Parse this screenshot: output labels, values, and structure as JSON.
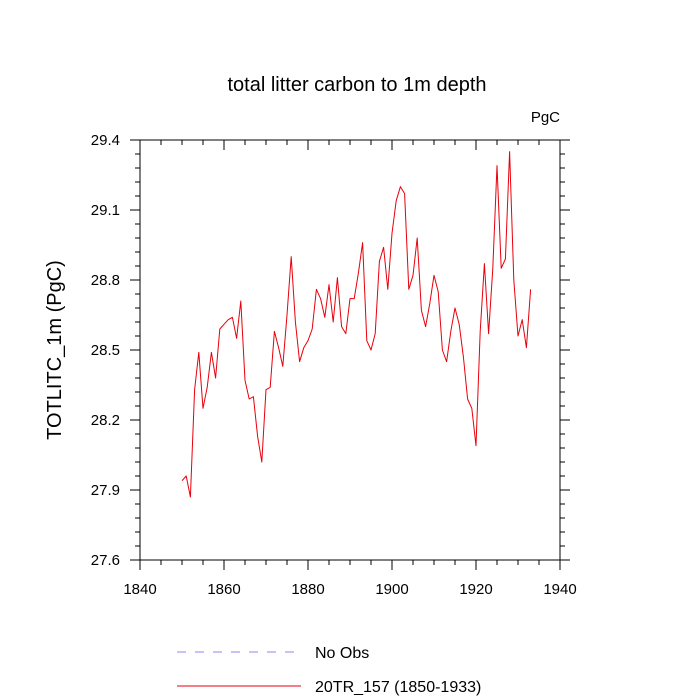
{
  "colors": {
    "series": "#e8000b",
    "no_obs": "#8a8af0",
    "axis": "#000000"
  },
  "chart_data": {
    "type": "line",
    "title": "total litter carbon to 1m depth",
    "units_label": "PgC",
    "xlabel": "",
    "ylabel": "TOTLITC_1m  (PgC)",
    "xlim": [
      1840,
      1940
    ],
    "ylim": [
      27.6,
      29.4
    ],
    "x_ticks": [
      1840,
      1860,
      1880,
      1900,
      1920,
      1940
    ],
    "y_ticks": [
      27.6,
      27.9,
      28.2,
      28.5,
      28.8,
      29.1,
      29.4
    ],
    "y_tick_labels": [
      "27.6",
      "27.9",
      "28.2",
      "28.5",
      "28.8",
      "29.1",
      "29.4"
    ],
    "grid": false,
    "legend": [
      {
        "name": "No Obs",
        "style": "dashed",
        "color": "#8a8af0"
      },
      {
        "name": "20TR_157 (1850-1933)",
        "style": "solid",
        "color": "#e8000b"
      }
    ],
    "series": [
      {
        "name": "20TR_157 (1850-1933)",
        "x": [
          1850,
          1851,
          1852,
          1853,
          1854,
          1855,
          1856,
          1857,
          1858,
          1859,
          1860,
          1861,
          1862,
          1863,
          1864,
          1865,
          1866,
          1867,
          1868,
          1869,
          1870,
          1871,
          1872,
          1873,
          1874,
          1875,
          1876,
          1877,
          1878,
          1879,
          1880,
          1881,
          1882,
          1883,
          1884,
          1885,
          1886,
          1887,
          1888,
          1889,
          1890,
          1891,
          1892,
          1893,
          1894,
          1895,
          1896,
          1897,
          1898,
          1899,
          1900,
          1901,
          1902,
          1903,
          1904,
          1905,
          1906,
          1907,
          1908,
          1909,
          1910,
          1911,
          1912,
          1913,
          1914,
          1915,
          1916,
          1917,
          1918,
          1919,
          1920,
          1921,
          1922,
          1923,
          1924,
          1925,
          1926,
          1927,
          1928,
          1929,
          1930,
          1931,
          1932,
          1933
        ],
        "values": [
          27.94,
          27.96,
          27.87,
          28.33,
          28.49,
          28.25,
          28.34,
          28.49,
          28.38,
          28.59,
          28.61,
          28.63,
          28.64,
          28.55,
          28.71,
          28.37,
          28.29,
          28.3,
          28.13,
          28.02,
          28.33,
          28.34,
          28.58,
          28.51,
          28.43,
          28.65,
          28.9,
          28.62,
          28.45,
          28.51,
          28.54,
          28.59,
          28.76,
          28.72,
          28.64,
          28.78,
          28.62,
          28.81,
          28.6,
          28.57,
          28.72,
          28.72,
          28.83,
          28.96,
          28.54,
          28.5,
          28.57,
          28.88,
          28.94,
          28.76,
          29.0,
          29.14,
          29.2,
          29.17,
          28.76,
          28.82,
          28.98,
          28.67,
          28.6,
          28.7,
          28.82,
          28.75,
          28.5,
          28.45,
          28.58,
          28.68,
          28.61,
          28.47,
          28.29,
          28.25,
          28.09,
          28.58,
          28.87,
          28.57,
          28.85,
          29.29,
          28.85,
          28.89,
          29.35,
          28.8,
          28.56,
          28.63,
          28.51,
          28.76
        ]
      }
    ]
  }
}
